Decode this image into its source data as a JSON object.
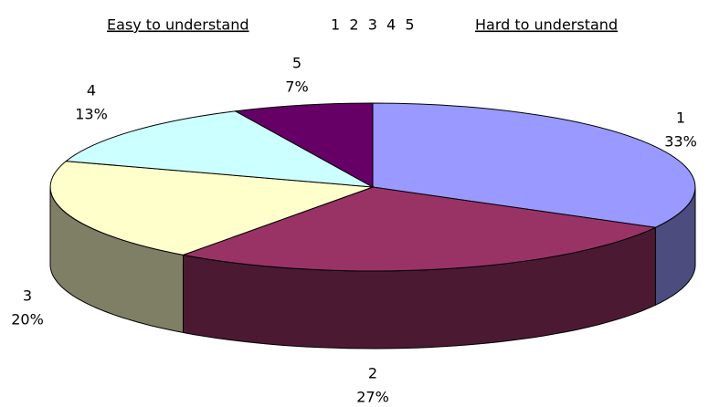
{
  "chart_data": {
    "type": "pie3d",
    "title_left": "Easy to understand",
    "title_scale": "1  2  3  4  5",
    "title_right": "Hard to understand",
    "categories": [
      "1",
      "2",
      "3",
      "4",
      "5"
    ],
    "values": [
      33,
      27,
      20,
      13,
      7
    ],
    "value_labels": [
      "33%",
      "27%",
      "20%",
      "13%",
      "7%"
    ],
    "colors": [
      "#9999ff",
      "#993366",
      "#ffffcc",
      "#ccffff",
      "#660066"
    ]
  }
}
